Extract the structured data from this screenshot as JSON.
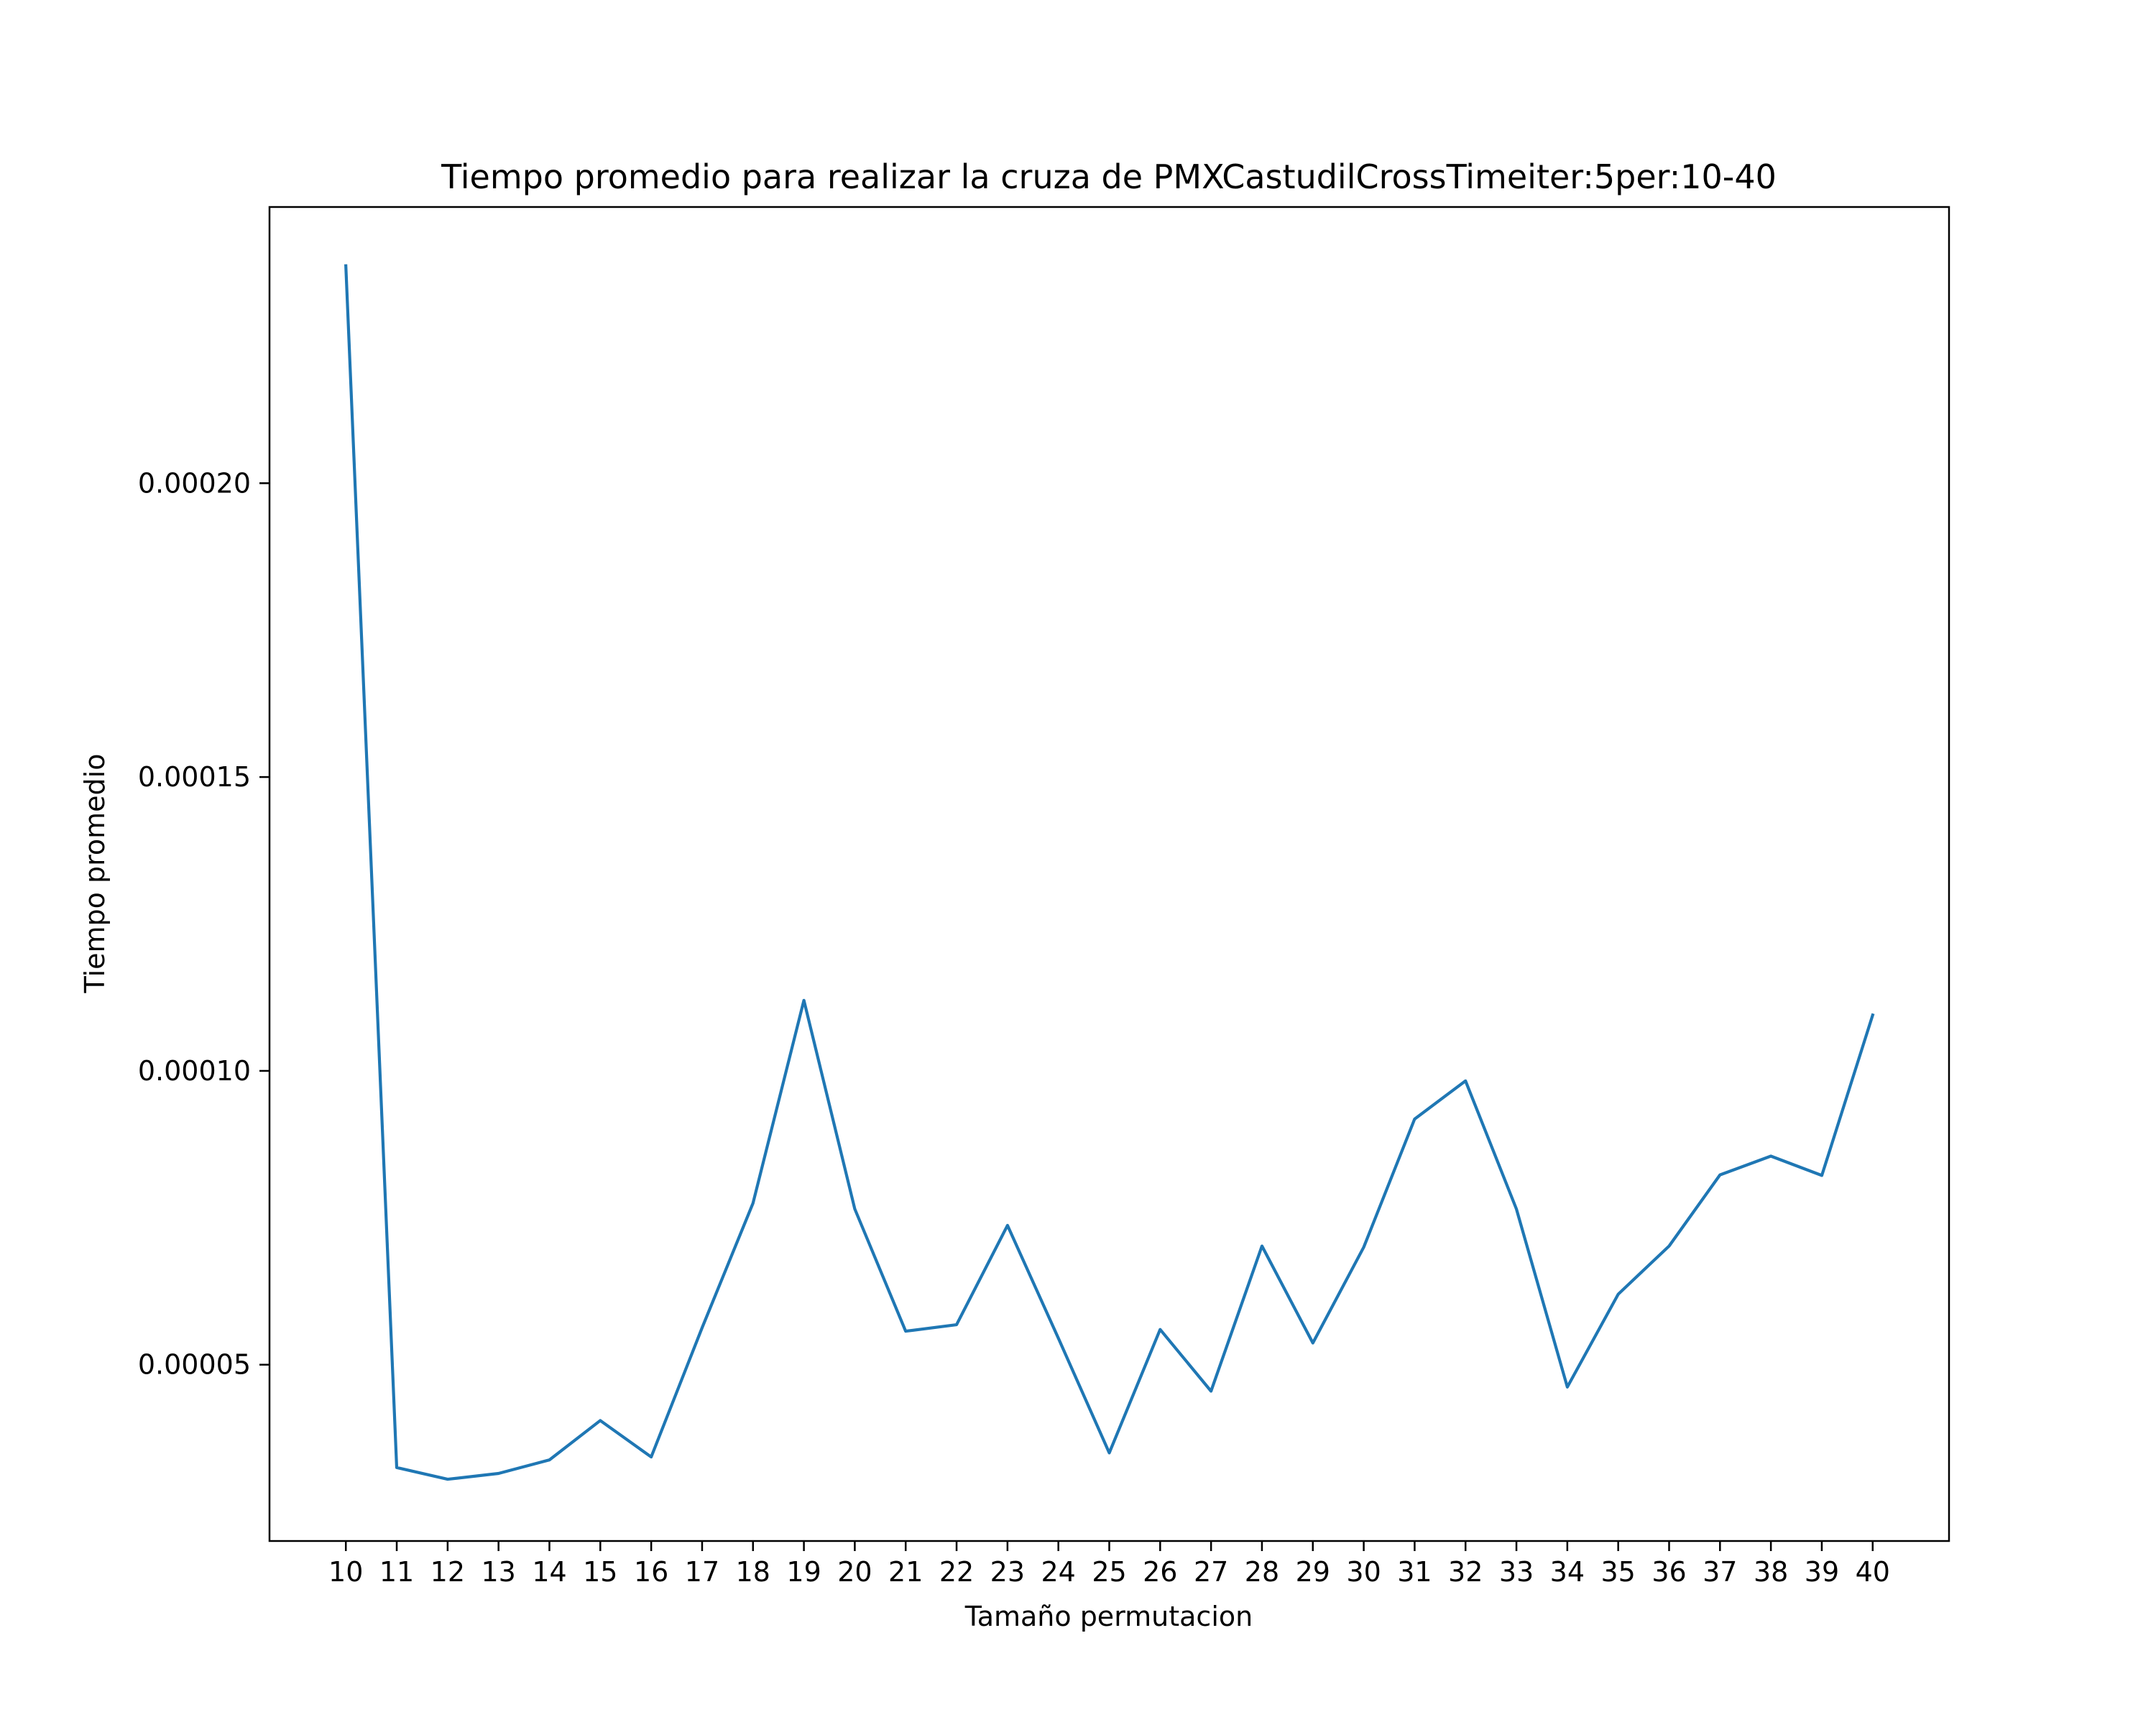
{
  "chart_data": {
    "type": "line",
    "title": "Tiempo promedio para realizar la cruza de PMXCastudilCrossTimeiter:5per:10-40",
    "xlabel": "Tamaño permutacion",
    "ylabel": "Tiempo promedio",
    "x": [
      10,
      11,
      12,
      13,
      14,
      15,
      16,
      17,
      18,
      19,
      20,
      21,
      22,
      23,
      24,
      25,
      26,
      27,
      28,
      29,
      30,
      31,
      32,
      33,
      34,
      35,
      36,
      37,
      38,
      39,
      40
    ],
    "x_tick_labels": [
      "10",
      "11",
      "12",
      "13",
      "14",
      "15",
      "16",
      "17",
      "18",
      "19",
      "20",
      "21",
      "22",
      "23",
      "24",
      "25",
      "26",
      "27",
      "28",
      "29",
      "30",
      "31",
      "32",
      "33",
      "34",
      "35",
      "36",
      "37",
      "38",
      "39",
      "40"
    ],
    "y_ticks": [
      5e-05,
      0.0001,
      0.00015,
      0.0002
    ],
    "y_tick_labels": [
      "0.00005",
      "0.00010",
      "0.00015",
      "0.00020"
    ],
    "xlim": [
      8.5,
      41.5
    ],
    "ylim": [
      2e-05,
      0.000247
    ],
    "grid": false,
    "series": [
      {
        "color": "#1f77b4",
        "values": [
          0.000237,
          3.25e-05,
          3.05e-05,
          3.15e-05,
          3.38e-05,
          4.05e-05,
          3.43e-05,
          5.63e-05,
          7.75e-05,
          0.000112,
          7.65e-05,
          5.57e-05,
          5.68e-05,
          7.37e-05,
          5.45e-05,
          3.5e-05,
          5.6e-05,
          4.55e-05,
          7.02e-05,
          5.37e-05,
          7e-05,
          9.18e-05,
          9.83e-05,
          7.65e-05,
          4.62e-05,
          6.2e-05,
          7.02e-05,
          8.23e-05,
          8.55e-05,
          8.22e-05,
          0.0001095
        ]
      }
    ]
  }
}
